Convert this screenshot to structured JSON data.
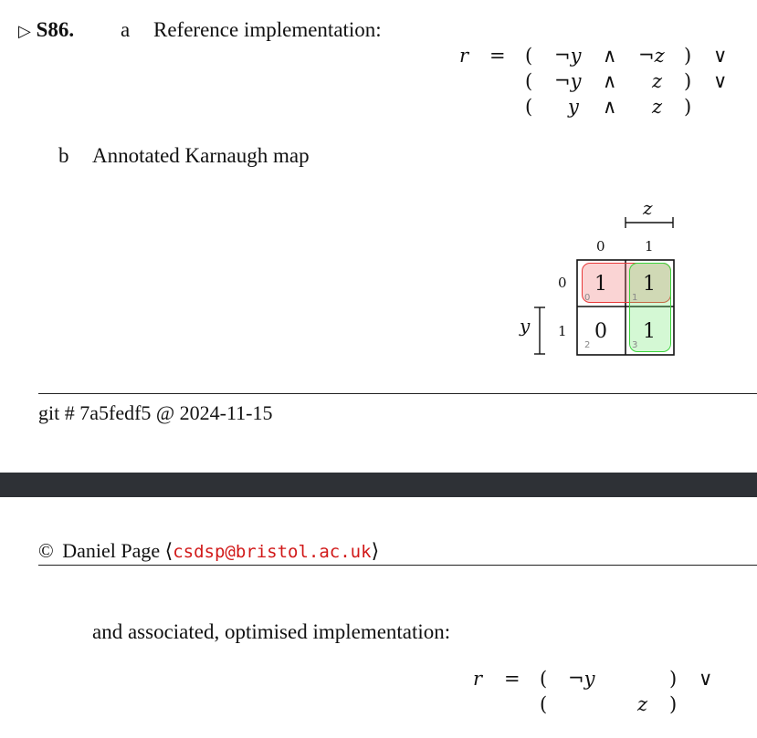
{
  "solution": {
    "marker": "▷",
    "label": "S86.",
    "part_a": {
      "letter": "a",
      "title": "Reference implementation:"
    },
    "part_b": {
      "letter": "b",
      "title": "Annotated Karnaugh map"
    }
  },
  "equation_ref": {
    "lhs": "r",
    "eq": "=",
    "rows": [
      {
        "open": "(",
        "t1": "¬y",
        "op": "∧",
        "t2": "¬z",
        "close": ")",
        "join": "∨"
      },
      {
        "open": "(",
        "t1": "¬y",
        "op": "∧",
        "t2": "z",
        "close": ")",
        "join": "∨"
      },
      {
        "open": "(",
        "t1": "y",
        "op": "∧",
        "t2": "z",
        "close": ")",
        "join": ""
      }
    ]
  },
  "kmap": {
    "col_var": "z",
    "row_var": "y",
    "col_labels": [
      "0",
      "1"
    ],
    "row_labels": [
      "0",
      "1"
    ],
    "cells": [
      {
        "value": "1",
        "index": "0"
      },
      {
        "value": "1",
        "index": "1"
      },
      {
        "value": "0",
        "index": "2"
      },
      {
        "value": "1",
        "index": "3"
      }
    ],
    "groups": [
      {
        "name": "row-0-group",
        "color": "#e83a3a",
        "fill": "#f8cccc"
      },
      {
        "name": "col-1-group",
        "color": "#3cd43c",
        "fill": "#cdf5cd"
      }
    ]
  },
  "footer": {
    "git": "git # 7a5fedf5 @ 2024-11-15"
  },
  "header2": {
    "copyright": "©",
    "author": "Daniel Page",
    "lbracket": "⟨",
    "email": "csdsp@bristol.ac.uk",
    "rbracket": "⟩"
  },
  "continuation": {
    "text": "and associated, optimised implementation:"
  },
  "equation_opt": {
    "lhs": "r",
    "eq": "=",
    "rows": [
      {
        "open": "(",
        "term": "¬y",
        "close": ")",
        "join": "∨"
      },
      {
        "open": "(",
        "term": "z",
        "close": ")",
        "join": ""
      }
    ]
  },
  "colors": {
    "email": "#d11919",
    "band": "#2e3136"
  }
}
